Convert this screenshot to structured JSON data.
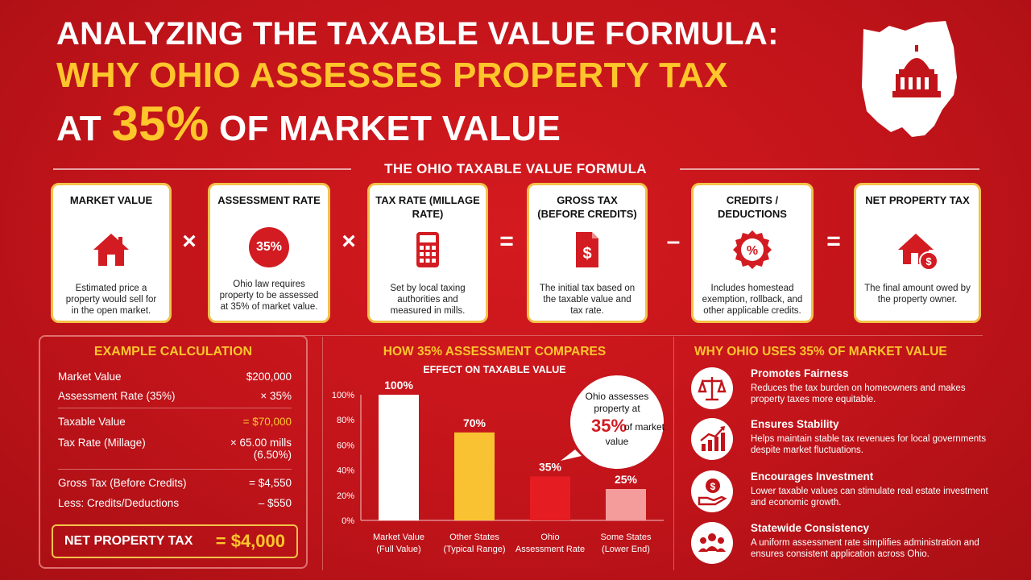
{
  "title": {
    "line1": "ANALYZING THE TAXABLE VALUE FORMULA:",
    "line2": "WHY OHIO ASSESSES PROPERTY TAX",
    "line3_pre": "AT ",
    "line3_pct": "35%",
    "line3_post": " OF MARKET VALUE"
  },
  "formula": {
    "heading": "THE OHIO TAXABLE VALUE FORMULA",
    "cards": [
      {
        "title": "MARKET VALUE",
        "icon": "house-icon",
        "desc": "Estimated price a property would sell for in the open market."
      },
      {
        "title": "ASSESSMENT RATE",
        "icon": "percent-badge-icon",
        "badge": "35%",
        "desc": "Ohio law requires property to be assessed at 35% of market value."
      },
      {
        "title": "TAX RATE (MILLAGE RATE)",
        "icon": "calculator-icon",
        "desc": "Set by local taxing authorities and measured in mills."
      },
      {
        "title": "GROSS TAX (BEFORE CREDITS)",
        "icon": "document-dollar-icon",
        "desc": "The initial tax based on the taxable value and tax rate."
      },
      {
        "title": "CREDITS / DEDUCTIONS",
        "icon": "discount-badge-icon",
        "desc": "Includes homestead exemption, rollback, and other applicable credits."
      },
      {
        "title": "NET PROPERTY TAX",
        "icon": "house-dollar-icon",
        "desc": "The final amount owed by the property owner."
      }
    ],
    "operators": [
      "×",
      "×",
      "=",
      "–",
      "="
    ]
  },
  "example": {
    "heading": "EXAMPLE CALCULATION",
    "rows": [
      {
        "label": "Market Value",
        "value": "$200,000"
      },
      {
        "label": "Assessment Rate (35%)",
        "value": "× 35%"
      },
      {
        "label": "Taxable Value",
        "value": "= $70,000"
      },
      {
        "label": "Tax Rate (Millage)",
        "value": "× 65.00 mills",
        "value2": "(6.50%)"
      },
      {
        "label": "Gross Tax (Before Credits)",
        "value": "= $4,550"
      },
      {
        "label": "Less: Credits/Deductions",
        "value": "– $550"
      }
    ],
    "net_label": "NET PROPERTY TAX",
    "net_value": "= $4,000"
  },
  "chart_data": {
    "type": "bar",
    "title": "HOW 35% ASSESSMENT COMPARES",
    "subtitle": "EFFECT ON TAXABLE VALUE",
    "categories": [
      "Market Value (Full Value)",
      "Other States (Typical Range)",
      "Ohio Assessment Rate",
      "Some States (Lower End)"
    ],
    "category_lines": [
      [
        "Market Value",
        "(Full Value)"
      ],
      [
        "Other States",
        "(Typical Range)"
      ],
      [
        "Ohio",
        "Assessment Rate"
      ],
      [
        "Some States",
        "(Lower End)"
      ]
    ],
    "values": [
      100,
      70,
      35,
      25
    ],
    "value_labels": [
      "100%",
      "70%",
      "35%",
      "25%"
    ],
    "colors": [
      "#ffffff",
      "#f9c233",
      "#e51d23",
      "#f49b9b"
    ],
    "ylim": [
      0,
      100
    ],
    "yticks": [
      "0%",
      "20%",
      "40%",
      "60%",
      "80%",
      "100%"
    ],
    "callout": {
      "pre": "Ohio assesses property at",
      "pct": "35%",
      "post": "of market value"
    }
  },
  "why": {
    "heading": "WHY OHIO USES 35% OF MARKET VALUE",
    "items": [
      {
        "icon": "scales-icon",
        "title": "Promotes Fairness",
        "desc": "Reduces the tax burden on homeowners and makes property taxes more equitable."
      },
      {
        "icon": "growth-chart-icon",
        "title": "Ensures Stability",
        "desc": "Helps maintain stable tax revenues for local governments despite market fluctuations."
      },
      {
        "icon": "hand-dollar-icon",
        "title": "Encourages Investment",
        "desc": "Lower taxable values can stimulate real estate investment and economic growth."
      },
      {
        "icon": "people-icon",
        "title": "Statewide Consistency",
        "desc": "A uniform assessment rate simplifies administration and ensures consistent application across Ohio."
      }
    ]
  }
}
